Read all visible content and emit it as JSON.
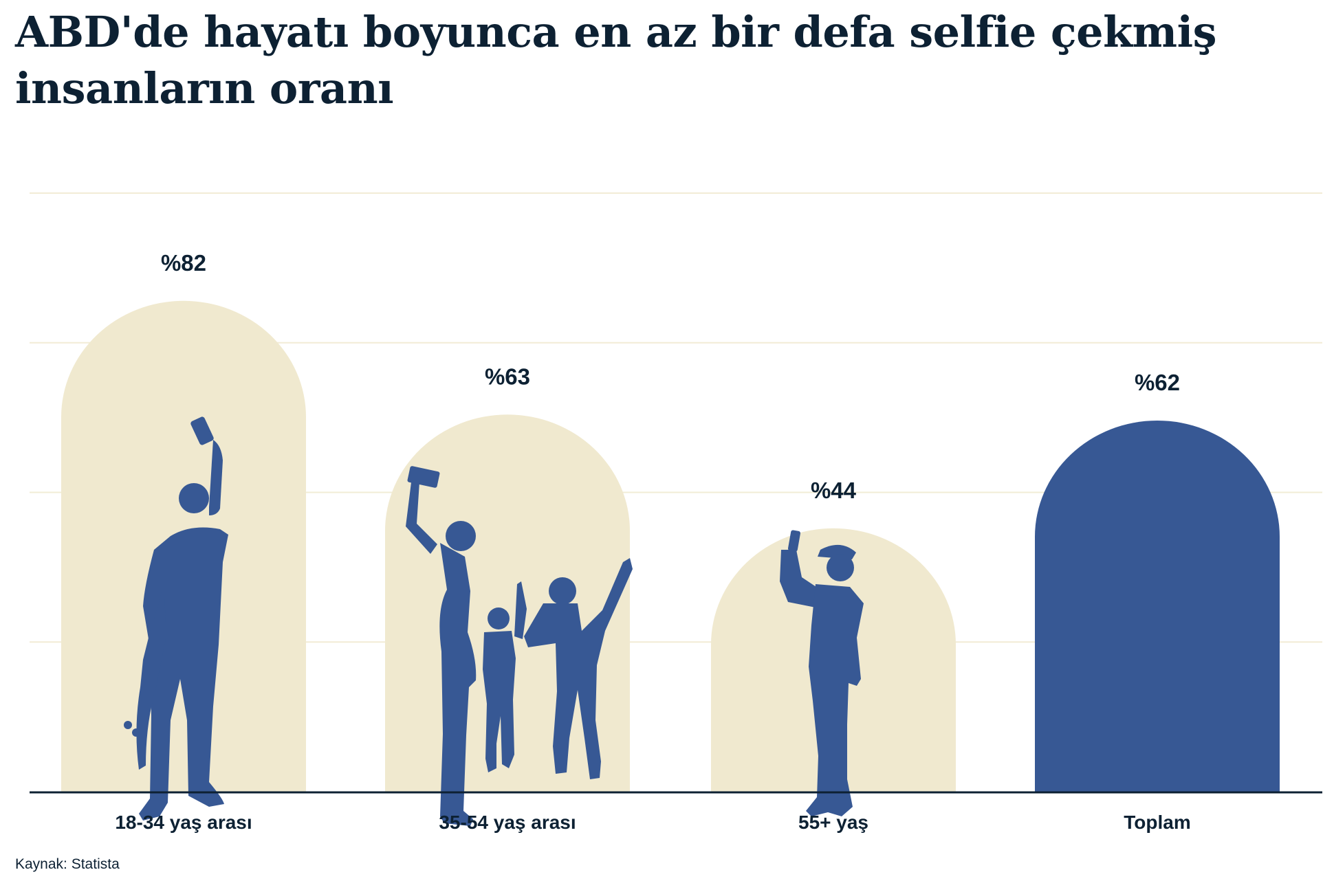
{
  "chart_data": {
    "type": "bar",
    "title": "ABD'de hayatı boyunca en az bir defa selfie çekmiş insanların oranı",
    "categories": [
      "18-34 yaş arası",
      "35-54 yaş arası",
      "55+ yaş",
      "Toplam"
    ],
    "values": [
      82,
      63,
      44,
      62
    ],
    "value_labels": [
      "%82",
      "%63",
      "%44",
      "%62"
    ],
    "xlabel": "",
    "ylabel": "",
    "ylim": [
      0,
      100
    ],
    "grid": true,
    "bar_shape": "rounded-top arch",
    "colors": {
      "bars": "#f0e9cf",
      "highlight": "#375894",
      "figures": "#375894",
      "grid": "#f2ecd6",
      "text": "#0d2133"
    },
    "highlight_category": "Toplam",
    "figures": [
      "young-person-selfie-skateboard-icon",
      "family-selfie-icon",
      "elderly-man-selfie-icon"
    ]
  },
  "source": "Kaynak: Statista"
}
